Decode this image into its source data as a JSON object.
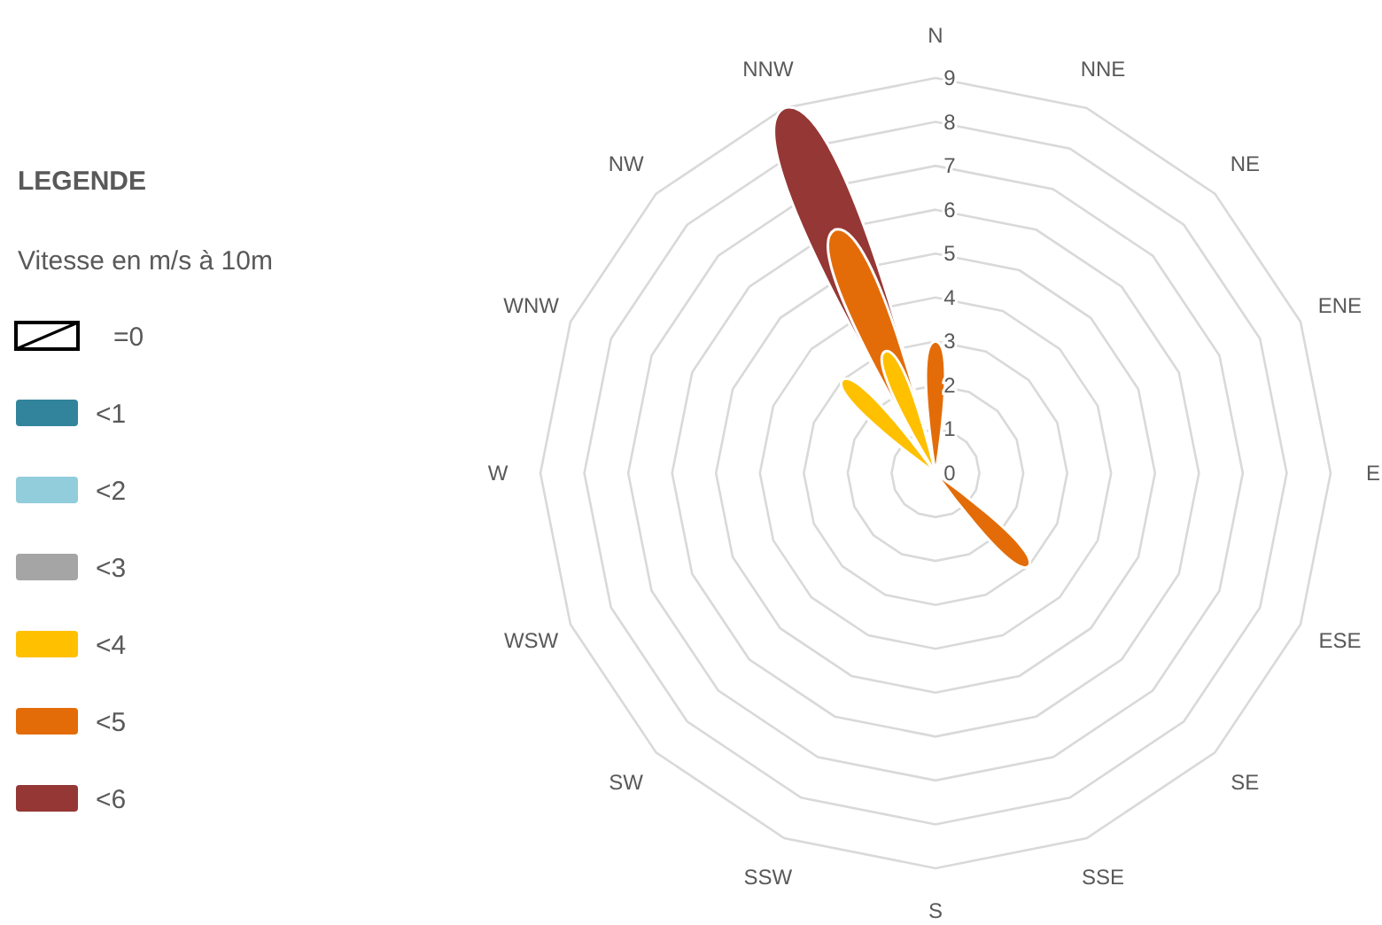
{
  "chart_data": {
    "type": "radar",
    "legend_title": "LEGENDE",
    "annotations": [
      "Vitesse en m/s à 10m"
    ],
    "categories": [
      "N",
      "NNE",
      "NE",
      "ENE",
      "E",
      "ESE",
      "SE",
      "SSE",
      "S",
      "SSW",
      "SW",
      "WSW",
      "W",
      "WNW",
      "NW",
      "NNW"
    ],
    "ylim": [
      0,
      9
    ],
    "yticks": [
      0,
      1,
      2,
      3,
      4,
      5,
      6,
      7,
      8,
      9
    ],
    "grid": true,
    "legend": "left",
    "series": [
      {
        "name": "<6",
        "color": "#953735",
        "values": [
          3,
          0,
          0,
          0,
          0,
          0,
          3,
          0,
          0,
          0,
          0,
          0,
          0,
          0,
          3,
          9
        ]
      },
      {
        "name": "<5",
        "color": "#e36c09",
        "values": [
          3,
          0,
          0,
          0,
          0,
          0,
          3,
          0,
          0,
          0,
          0,
          0,
          0,
          0,
          3,
          6
        ]
      },
      {
        "name": "<4",
        "color": "#ffc000",
        "values": [
          0,
          0,
          0,
          0,
          0,
          0,
          0,
          0,
          0,
          0,
          0,
          0,
          0,
          0,
          3,
          3
        ]
      },
      {
        "name": "<3",
        "color": "#a5a5a5",
        "values": [
          null,
          null,
          null,
          null,
          null,
          null,
          null,
          null,
          null,
          null,
          null,
          null,
          null,
          null,
          null,
          null
        ]
      },
      {
        "name": "<2",
        "color": "#92cddc",
        "values": [
          null,
          null,
          null,
          null,
          null,
          null,
          null,
          null,
          null,
          null,
          null,
          null,
          null,
          null,
          null,
          null
        ]
      },
      {
        "name": "<1",
        "color": "#31849b",
        "values": [
          null,
          null,
          null,
          null,
          null,
          null,
          null,
          null,
          null,
          null,
          null,
          null,
          null,
          null,
          null,
          null
        ]
      },
      {
        "name": "=0",
        "color": "#ffffff",
        "values": [
          null,
          null,
          null,
          null,
          null,
          null,
          null,
          null,
          null,
          null,
          null,
          null,
          null,
          null,
          null,
          null
        ]
      }
    ]
  }
}
